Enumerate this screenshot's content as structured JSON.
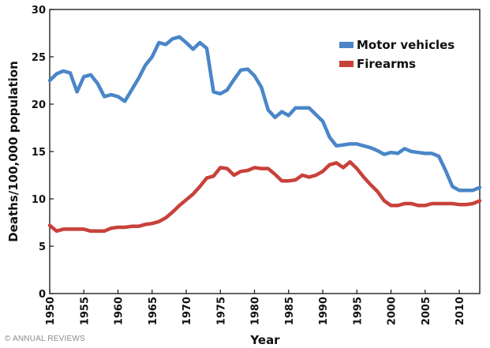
{
  "chart_data": {
    "type": "line",
    "xlabel": "Year",
    "ylabel": "Deaths/100,000 population",
    "xlim": [
      1950,
      2013
    ],
    "ylim": [
      0,
      30
    ],
    "x_ticks": [
      1950,
      1955,
      1960,
      1965,
      1970,
      1975,
      1980,
      1985,
      1990,
      1995,
      2000,
      2005,
      2010
    ],
    "y_ticks": [
      0,
      5,
      10,
      15,
      20,
      25,
      30
    ],
    "grid": false,
    "legend_position": "top-right",
    "x": [
      1950,
      1951,
      1952,
      1953,
      1954,
      1955,
      1956,
      1957,
      1958,
      1959,
      1960,
      1961,
      1962,
      1963,
      1964,
      1965,
      1966,
      1967,
      1968,
      1969,
      1970,
      1971,
      1972,
      1973,
      1974,
      1975,
      1976,
      1977,
      1978,
      1979,
      1980,
      1981,
      1982,
      1983,
      1984,
      1985,
      1986,
      1987,
      1988,
      1989,
      1990,
      1991,
      1992,
      1993,
      1994,
      1995,
      1996,
      1997,
      1998,
      1999,
      2000,
      2001,
      2002,
      2003,
      2004,
      2005,
      2006,
      2007,
      2008,
      2009,
      2010,
      2011,
      2012,
      2013
    ],
    "series": [
      {
        "name": "Motor vehicles",
        "color": "#4a86c8",
        "values": [
          22.5,
          23.2,
          23.5,
          23.3,
          21.3,
          22.9,
          23.1,
          22.2,
          20.8,
          21.0,
          20.8,
          20.3,
          21.5,
          22.7,
          24.1,
          25.0,
          26.5,
          26.3,
          26.9,
          27.1,
          26.5,
          25.8,
          26.5,
          25.9,
          21.3,
          21.1,
          21.5,
          22.6,
          23.6,
          23.7,
          23.0,
          21.8,
          19.4,
          18.6,
          19.2,
          18.8,
          19.6,
          19.6,
          19.6,
          18.9,
          18.2,
          16.5,
          15.6,
          15.7,
          15.8,
          15.8,
          15.6,
          15.4,
          15.1,
          14.7,
          14.9,
          14.8,
          15.3,
          15.0,
          14.9,
          14.8,
          14.8,
          14.5,
          13.0,
          11.3,
          10.9,
          10.9,
          10.9,
          11.2
        ]
      },
      {
        "name": "Firearms",
        "color": "#c8413b",
        "values": [
          7.2,
          6.6,
          6.8,
          6.8,
          6.8,
          6.8,
          6.6,
          6.6,
          6.6,
          6.9,
          7.0,
          7.0,
          7.1,
          7.1,
          7.3,
          7.4,
          7.6,
          8.0,
          8.6,
          9.3,
          9.9,
          10.5,
          11.3,
          12.2,
          12.4,
          13.3,
          13.2,
          12.5,
          12.9,
          13.0,
          13.3,
          13.2,
          13.2,
          12.6,
          11.9,
          11.9,
          12.0,
          12.5,
          12.3,
          12.5,
          12.9,
          13.6,
          13.8,
          13.3,
          13.9,
          13.2,
          12.3,
          11.5,
          10.8,
          9.8,
          9.3,
          9.3,
          9.5,
          9.5,
          9.3,
          9.3,
          9.5,
          9.5,
          9.5,
          9.5,
          9.4,
          9.4,
          9.5,
          9.8
        ]
      }
    ]
  },
  "watermark_text": "© ANNUAL REVIEWS"
}
